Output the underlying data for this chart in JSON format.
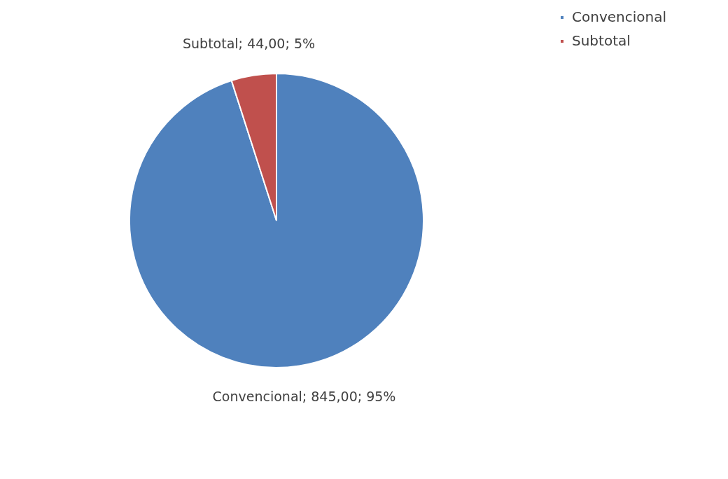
{
  "chart_data": {
    "type": "pie",
    "categories": [
      "Convencional",
      "Subtotal"
    ],
    "values": [
      845,
      44
    ],
    "colors": [
      "#4f81bd",
      "#c0504d"
    ],
    "value_labels": [
      "Convencional; 845,00; 95%",
      "Subtotal; 44,00; 5%"
    ],
    "legend": "right"
  }
}
